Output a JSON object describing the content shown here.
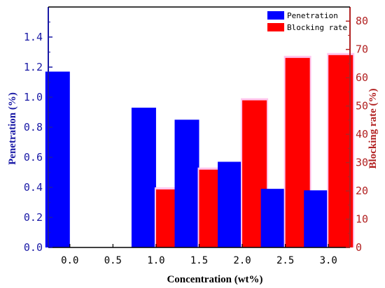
{
  "chart_data": {
    "type": "bar",
    "title": "",
    "xlabel": "Concentration (wt%)",
    "categories": [
      "0.0",
      "0.5",
      "1.0",
      "1.5",
      "2.0",
      "2.5",
      "3.0"
    ],
    "y_left": {
      "label": "Penetration (%)",
      "range": [
        0,
        1.6
      ],
      "ticks": [
        "0.0",
        "0.2",
        "0.4",
        "0.6",
        "0.8",
        "1.0",
        "1.2",
        "1.4"
      ],
      "color": "#1a1aa6"
    },
    "y_right": {
      "label": "Blocking rate (%)",
      "range": [
        0,
        85
      ],
      "ticks": [
        "0",
        "10",
        "20",
        "30",
        "40",
        "50",
        "60",
        "70",
        "80"
      ],
      "color": "#b22222"
    },
    "series": [
      {
        "name": "Penetration",
        "axis": "left",
        "color": "#0000ff",
        "values": [
          1.17,
          0,
          0.93,
          0.85,
          0.57,
          0.39,
          0.38
        ]
      },
      {
        "name": "Blocking rate",
        "axis": "right",
        "color": "#ff0000",
        "values": [
          0,
          0,
          20.5,
          27.5,
          52,
          67,
          68
        ]
      }
    ],
    "legend": {
      "placement": "top-right"
    },
    "grid": false
  }
}
